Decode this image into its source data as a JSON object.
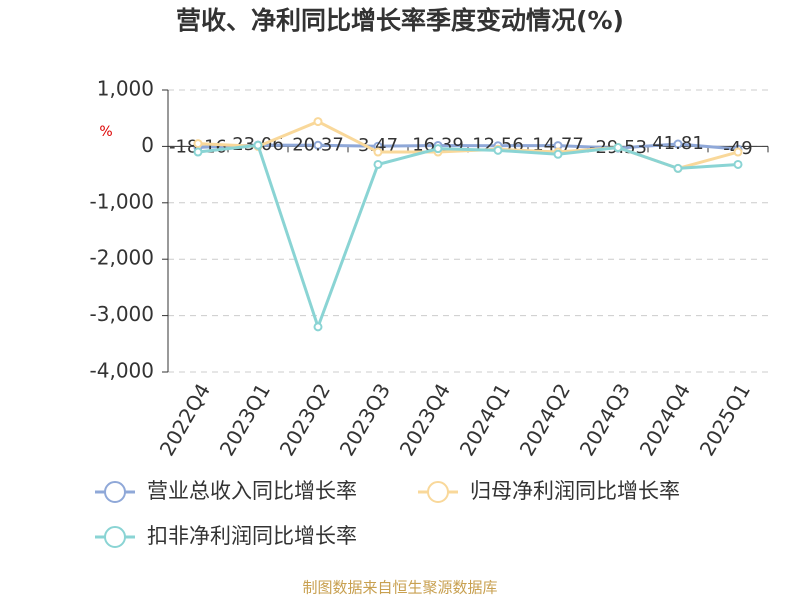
{
  "chart_data": {
    "type": "line",
    "title": "营收、净利同比增长率季度变动情况(%)",
    "y_label": "%",
    "categories": [
      "2022Q4",
      "2023Q1",
      "2023Q2",
      "2023Q3",
      "2023Q4",
      "2024Q1",
      "2024Q2",
      "2024Q3",
      "2024Q4",
      "2025Q1"
    ],
    "series": [
      {
        "name": "营业总收入同比增长率",
        "color": "#8fa8d8",
        "values": [
          -18.16,
          23.06,
          20.37,
          3.47,
          16.39,
          12.56,
          14.77,
          -29.53,
          41.81,
          -49
        ],
        "value_labels": [
          "-18.16",
          "23.06",
          "20.37",
          "3.47",
          "16.39",
          "12.56",
          "14.77",
          "-29.53",
          "41.81",
          "-49"
        ]
      },
      {
        "name": "归母净利润同比增长率",
        "color": "#f9d89a",
        "values": [
          50,
          0,
          440,
          -100,
          -100,
          -50,
          -100,
          -20,
          -390,
          -100
        ]
      },
      {
        "name": "扣非净利润同比增长率",
        "color": "#8ad4d4",
        "values": [
          -100,
          20,
          -3200,
          -320,
          -40,
          -70,
          -140,
          -20,
          -390,
          -320
        ]
      }
    ],
    "ylim": [
      -4000,
      1000
    ],
    "yticks": [
      {
        "value": 1000,
        "label": "1,000"
      },
      0,
      {
        "value": -1000,
        "label": "-1,000"
      },
      {
        "value": -2000,
        "label": "-2,000"
      },
      {
        "value": -3000,
        "label": "-3,000"
      },
      {
        "value": -4000,
        "label": "-4,000"
      }
    ],
    "grid": true,
    "source": "制图数据来自恒生聚源数据库"
  }
}
